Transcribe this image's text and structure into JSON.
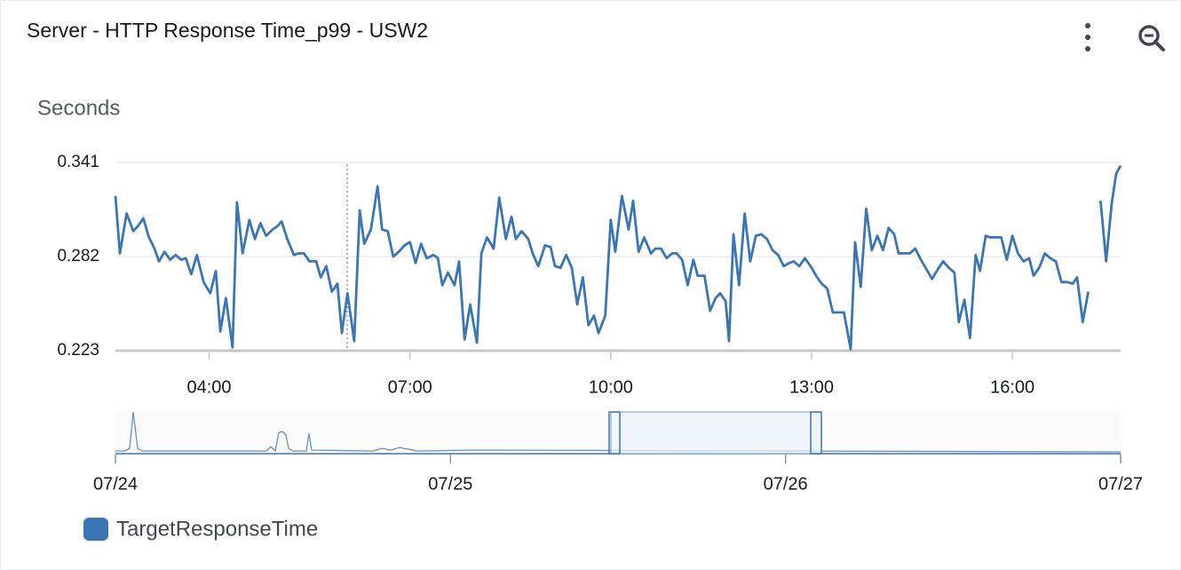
{
  "chart_data": {
    "type": "line",
    "title": "Server - HTTP Response Time_p99 - USW2",
    "y_label": "Seconds",
    "x": [
      "02:36",
      "02:40",
      "02:46",
      "02:52",
      "02:56",
      "03:01",
      "03:06",
      "03:11",
      "03:15",
      "03:20",
      "03:25",
      "03:30",
      "03:35",
      "03:39",
      "03:44",
      "03:49",
      "03:55",
      "04:01",
      "04:06",
      "04:10",
      "04:15",
      "04:21",
      "04:25",
      "04:30",
      "04:36",
      "04:41",
      "04:46",
      "04:51",
      "04:57",
      "05:01",
      "05:05",
      "05:10",
      "05:16",
      "05:20",
      "05:25",
      "05:30",
      "05:36",
      "05:40",
      "05:45",
      "05:50",
      "05:55",
      "05:59",
      "06:04",
      "06:10",
      "06:15",
      "06:19",
      "06:25",
      "06:31",
      "06:35",
      "06:40",
      "06:45",
      "06:50",
      "06:55",
      "07:00",
      "07:05",
      "07:10",
      "07:15",
      "07:21",
      "07:25",
      "07:29",
      "07:34",
      "07:40",
      "07:44",
      "07:49",
      "07:54",
      "08:00",
      "08:04",
      "08:09",
      "08:15",
      "08:20",
      "08:26",
      "08:31",
      "08:35",
      "08:40",
      "08:46",
      "08:50",
      "08:55",
      "09:01",
      "09:06",
      "09:10",
      "09:15",
      "09:20",
      "09:25",
      "09:30",
      "09:35",
      "09:40",
      "09:45",
      "09:49",
      "09:55",
      "10:00",
      "10:04",
      "10:10",
      "10:16",
      "10:20",
      "10:25",
      "10:30",
      "10:36",
      "10:40",
      "10:45",
      "10:50",
      "10:55",
      "10:59",
      "11:04",
      "11:09",
      "11:14",
      "11:18",
      "11:24",
      "11:29",
      "11:34",
      "11:38",
      "11:43",
      "11:46",
      "11:50",
      "11:55",
      "12:00",
      "12:05",
      "12:10",
      "12:15",
      "12:20",
      "12:25",
      "12:30",
      "12:35",
      "12:40",
      "12:44",
      "12:49",
      "12:54",
      "13:00",
      "13:04",
      "13:09",
      "13:14",
      "13:19",
      "13:23",
      "13:29",
      "13:35",
      "13:39",
      "13:44",
      "13:49",
      "13:54",
      "13:59",
      "14:04",
      "14:09",
      "14:14",
      "14:18",
      "14:23",
      "14:28",
      "14:33",
      "14:38",
      "14:43",
      "14:48",
      "14:53",
      "14:58",
      "15:03",
      "15:08",
      "15:12",
      "15:17",
      "15:22",
      "15:27",
      "15:31",
      "15:36",
      "15:40",
      "15:45",
      "15:50",
      "15:55",
      "16:00",
      "16:05",
      "16:10",
      "16:15",
      "16:19",
      "16:24",
      "16:29",
      "16:34",
      "16:39",
      "16:44",
      "16:49",
      "16:54",
      "16:58",
      "17:03",
      "17:08",
      "17:13",
      "17:19",
      "17:24",
      "17:29",
      "17:33",
      "17:37"
    ],
    "series": [
      {
        "name": "TargetResponseTime",
        "color": "#3b75b3",
        "values": [
          0.32,
          0.284,
          0.309,
          0.298,
          0.301,
          0.306,
          0.294,
          0.287,
          0.279,
          0.285,
          0.28,
          0.283,
          0.28,
          0.281,
          0.271,
          0.283,
          0.266,
          0.259,
          0.273,
          0.235,
          0.256,
          0.225,
          0.316,
          0.284,
          0.305,
          0.293,
          0.303,
          0.295,
          0.299,
          0.301,
          0.304,
          0.293,
          0.283,
          0.284,
          0.284,
          0.279,
          0.279,
          0.269,
          0.276,
          0.26,
          0.265,
          0.234,
          0.259,
          0.229,
          0.311,
          0.29,
          0.299,
          0.326,
          0.299,
          0.298,
          0.282,
          0.285,
          0.289,
          0.291,
          0.278,
          0.29,
          0.281,
          0.283,
          0.281,
          0.264,
          0.272,
          0.264,
          0.279,
          0.23,
          0.252,
          0.228,
          0.284,
          0.294,
          0.287,
          0.319,
          0.293,
          0.307,
          0.293,
          0.298,
          0.293,
          0.284,
          0.276,
          0.289,
          0.288,
          0.276,
          0.275,
          0.283,
          0.275,
          0.252,
          0.269,
          0.239,
          0.245,
          0.234,
          0.245,
          0.305,
          0.285,
          0.32,
          0.299,
          0.317,
          0.285,
          0.294,
          0.284,
          0.287,
          0.287,
          0.281,
          0.284,
          0.284,
          0.28,
          0.264,
          0.28,
          0.27,
          0.27,
          0.248,
          0.256,
          0.259,
          0.254,
          0.229,
          0.296,
          0.264,
          0.309,
          0.279,
          0.295,
          0.296,
          0.293,
          0.286,
          0.283,
          0.276,
          0.278,
          0.279,
          0.276,
          0.281,
          0.275,
          0.27,
          0.265,
          0.262,
          0.247,
          0.247,
          0.247,
          0.224,
          0.291,
          0.263,
          0.312,
          0.286,
          0.295,
          0.286,
          0.3,
          0.296,
          0.284,
          0.284,
          0.284,
          0.287,
          0.28,
          0.274,
          0.268,
          0.274,
          0.279,
          0.275,
          0.272,
          0.241,
          0.255,
          0.231,
          0.283,
          0.273,
          0.295,
          0.294,
          0.294,
          0.294,
          0.28,
          0.295,
          0.284,
          0.279,
          0.281,
          0.27,
          0.275,
          0.284,
          0.281,
          0.279,
          0.266,
          0.266,
          0.265,
          0.269,
          0.241,
          0.26,
          null,
          0.317,
          0.279,
          0.315,
          0.334,
          0.339
        ]
      }
    ],
    "xlim": [
      "02:36",
      "17:37"
    ],
    "xticks": [
      "04:00",
      "07:00",
      "10:00",
      "13:00",
      "16:00"
    ],
    "ylim": [
      0.223,
      0.341
    ],
    "yticks": [
      0.223,
      0.282,
      0.341
    ],
    "grid": true,
    "navigator_ticks": [
      "07/24",
      "07/25",
      "07/26",
      "07/27"
    ]
  }
}
